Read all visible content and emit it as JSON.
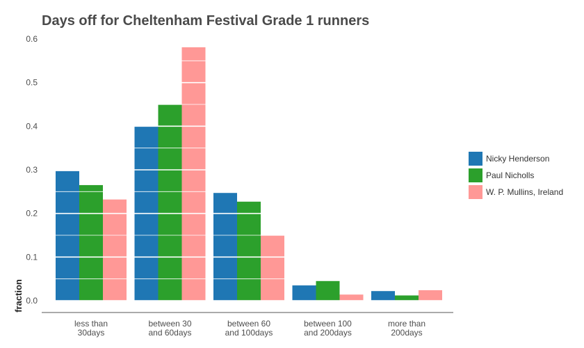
{
  "chart_data": {
    "type": "bar",
    "title": "Days off for Cheltenham Festival Grade 1 runners",
    "xlabel": "",
    "ylabel": "fraction",
    "ylim": [
      0,
      0.6
    ],
    "yticks": [
      "0.0",
      "0.1",
      "0.2",
      "0.3",
      "0.4",
      "0.5",
      "0.6"
    ],
    "categories": [
      [
        "less than",
        "30days"
      ],
      [
        "between 30",
        "and 60days"
      ],
      [
        "between 60",
        "and 100days"
      ],
      [
        "between 100",
        "and 200days"
      ],
      [
        "more than",
        "200days"
      ]
    ],
    "series": [
      {
        "name": "Nicky Henderson",
        "color": "#1f77b4",
        "values": [
          0.297,
          0.399,
          0.247,
          0.035,
          0.022
        ]
      },
      {
        "name": "Paul Nicholls",
        "color": "#2ca02c",
        "values": [
          0.265,
          0.449,
          0.227,
          0.045,
          0.012
        ]
      },
      {
        "name": "W. P. Mullins, Ireland",
        "color": "#ff9896",
        "values": [
          0.232,
          0.581,
          0.149,
          0.014,
          0.024
        ]
      }
    ],
    "grid": true,
    "legend_position": "right"
  }
}
